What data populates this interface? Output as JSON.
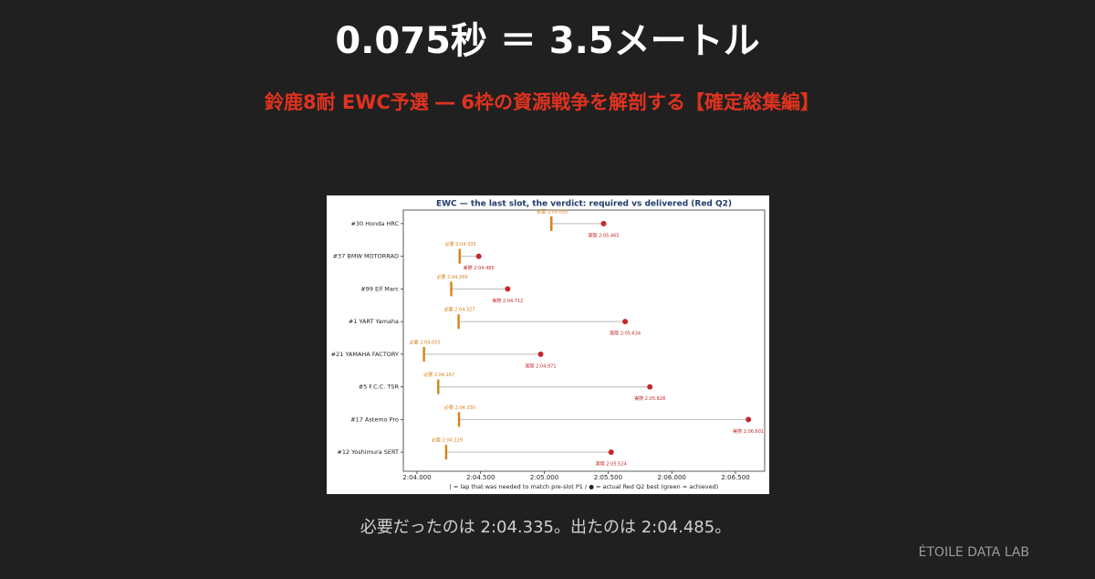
{
  "header": {
    "title": "0.075秒 ＝ 3.5メートル",
    "subtitle": "鈴鹿8耐 EWC予選 ― 6枠の資源戦争を解剖する【確定総集編】"
  },
  "chart_data": {
    "type": "dumbbell",
    "title": "EWC — the last slot, the verdict: required vs delivered (Red Q2)",
    "categories": [
      "#30 Honda HRC",
      "#37 BMW MOTORRAD",
      "#99 Elf Marc",
      "#1 YART Yamaha",
      "#21 YAMAHA FACTORY",
      "#5 F.C.C. TSR",
      "#17 Astemo Pro",
      "#12 Yoshimura SERT"
    ],
    "series": [
      {
        "color": "#d4821a",
        "values": [
          125.055,
          124.335,
          124.269,
          124.327,
          124.055,
          124.167,
          124.33,
          124.229
        ],
        "value_labels": [
          "必要 2:05.055",
          "必要 2:04.335",
          "必要 2:04.269",
          "必要 2:04.327",
          "必要 2:04.055",
          "必要 2:04.167",
          "必要 2:04.330",
          "必要 2:04.229"
        ]
      },
      {
        "color": "#c62828",
        "values": [
          125.465,
          124.485,
          124.712,
          125.634,
          124.971,
          125.828,
          126.601,
          125.524
        ],
        "value_labels": [
          "実際 2:05.465",
          "実際 2:04.485",
          "実際 2:04.712",
          "実際 2:05.634",
          "実際 2:04.971",
          "実際 2:05.828",
          "実際 2:06.601",
          "実際 2:05.524"
        ]
      }
    ],
    "xlim": [
      123.893,
      126.729
    ],
    "xticks": [
      {
        "value": 124.0,
        "label": "2:04.000"
      },
      {
        "value": 124.5,
        "label": "2:04.500"
      },
      {
        "value": 125.0,
        "label": "2:05.000"
      },
      {
        "value": 125.5,
        "label": "2:05.500"
      },
      {
        "value": 126.0,
        "label": "2:06.000"
      },
      {
        "value": 126.5,
        "label": "2:06.500"
      }
    ],
    "note": "| = lap that was needed to match pre-slot P1   /   ● = actual Red Q2 best (green = achieved)"
  },
  "caption": "必要だったのは 2:04.335。出たのは 2:04.485。",
  "brand": "ÉTOILE DATA LAB"
}
